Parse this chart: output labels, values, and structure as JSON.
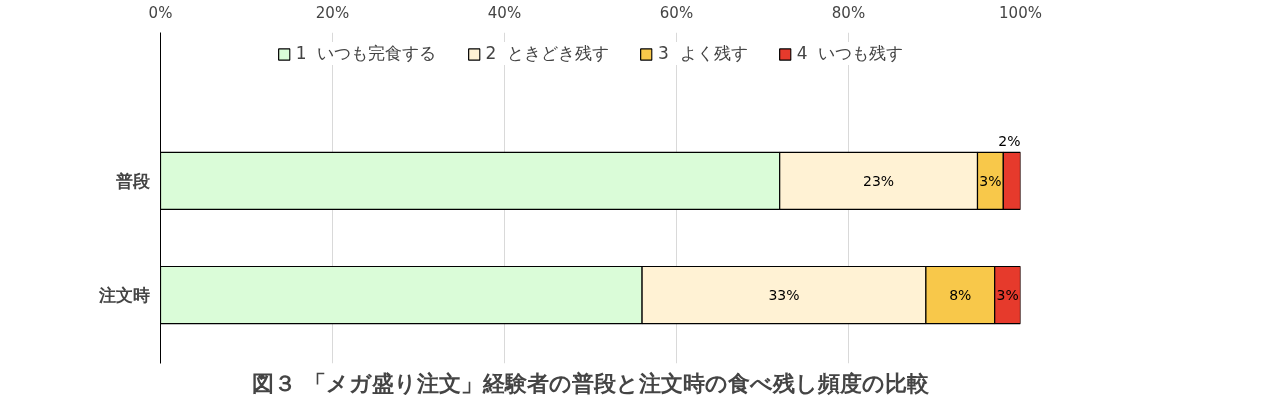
{
  "chart_data": {
    "type": "bar",
    "orientation": "horizontal",
    "stacked": true,
    "title": "図３ 「メガ盛り注文」経験者の普段と注文時の食べ残し頻度の比較",
    "categories": [
      "普段",
      "注文時"
    ],
    "series": [
      {
        "name": "1  いつも完食する",
        "color": "#dafcd8",
        "values": [
          72,
          56
        ],
        "value_labels": [
          null,
          null
        ]
      },
      {
        "name": "2  ときどき残す",
        "color": "#fff2d4",
        "values": [
          23,
          33
        ],
        "value_labels": [
          "23%",
          "33%"
        ]
      },
      {
        "name": "3  よく残す",
        "color": "#f8c84a",
        "values": [
          3,
          8
        ],
        "value_labels": [
          "3%",
          "8%"
        ]
      },
      {
        "name": "4  いつも残す",
        "color": "#e63a2c",
        "values": [
          2,
          3
        ],
        "value_labels": [
          "2%",
          "3%"
        ]
      }
    ],
    "xlim": [
      0,
      100
    ],
    "xticks": [
      {
        "value": 0,
        "label": "0%"
      },
      {
        "value": 20,
        "label": "20%"
      },
      {
        "value": 40,
        "label": "40%"
      },
      {
        "value": 60,
        "label": "60%"
      },
      {
        "value": 80,
        "label": "80%"
      },
      {
        "value": 100,
        "label": "100%"
      }
    ],
    "grid": "x",
    "legend": "top"
  }
}
